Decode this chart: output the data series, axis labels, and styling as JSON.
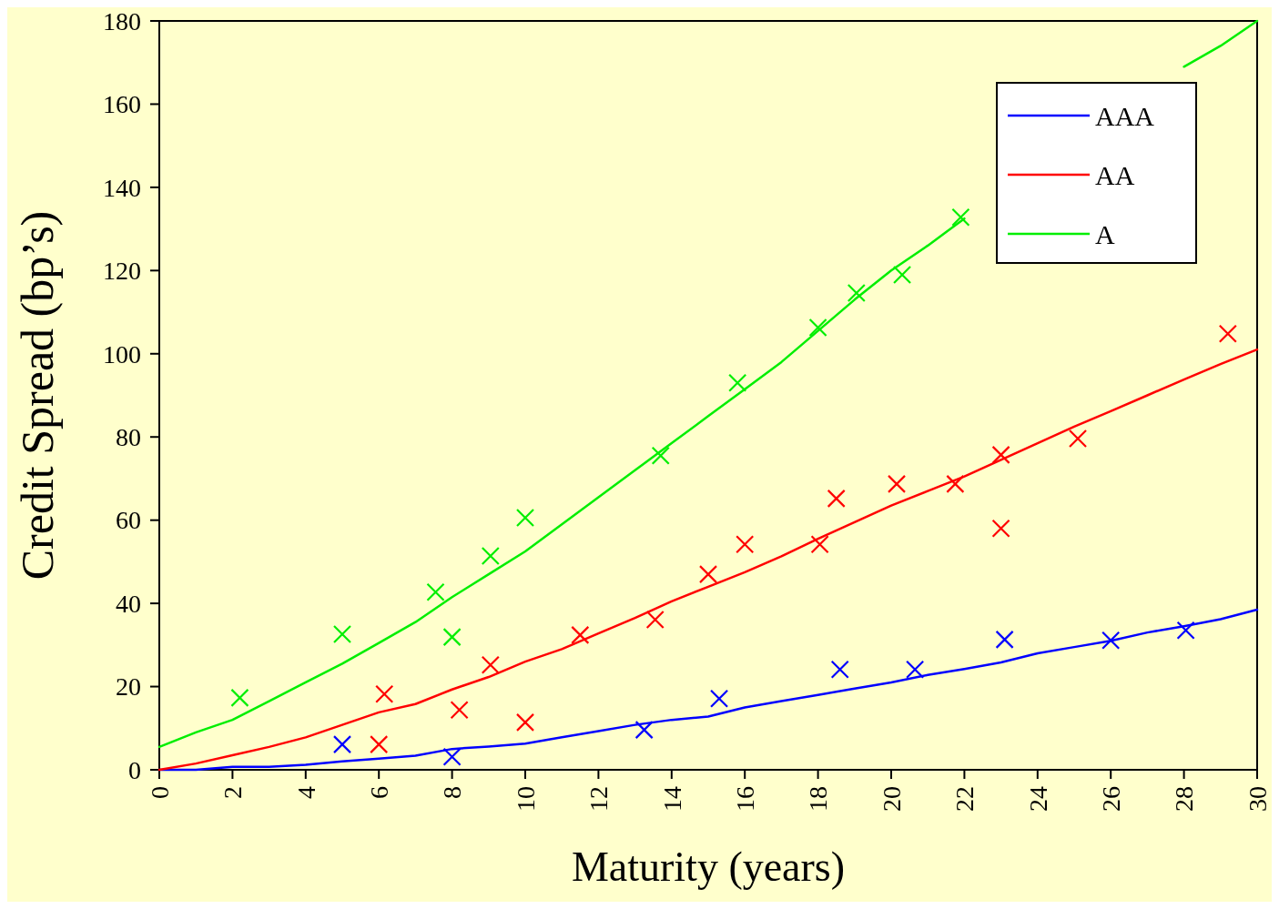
{
  "chart_data": {
    "type": "line",
    "xlabel": "Maturity (years)",
    "ylabel": "Credit Spread (bp’s)",
    "xlim": [
      0,
      30
    ],
    "xticks": [
      0,
      2,
      4,
      6,
      8,
      10,
      12,
      14,
      16,
      18,
      20,
      22,
      24,
      26,
      28,
      30
    ],
    "ylim": [
      0,
      180
    ],
    "yticks": [
      0,
      20,
      40,
      60,
      80,
      100,
      120,
      140,
      160,
      180
    ],
    "grid": false,
    "legend": "top right",
    "line_style": "solid",
    "series": [
      {
        "name": "AAA",
        "type": "line",
        "color": "#0000ff",
        "marker": "none",
        "x": [
          0,
          1,
          2,
          3,
          4,
          5,
          6,
          7,
          8,
          9,
          10,
          11,
          12,
          13,
          14,
          15,
          16,
          17,
          18,
          19,
          20,
          21,
          22,
          23,
          24,
          25,
          26,
          27,
          28,
          29,
          30
        ],
        "values": [
          0,
          0,
          0.7,
          0.7,
          1.2,
          2,
          2.7,
          3.4,
          5,
          5.6,
          6.3,
          7.8,
          9.3,
          10.8,
          12,
          12.8,
          15,
          16.5,
          18,
          19.5,
          21,
          22.8,
          24.2,
          25.8,
          28,
          29.5,
          31,
          33,
          34.5,
          36.2,
          38.5
        ]
      },
      {
        "name": "AA",
        "type": "line",
        "color": "#ff0000",
        "marker": "none",
        "x": [
          0,
          1,
          2,
          3,
          4,
          5,
          6,
          7,
          8,
          9,
          10,
          11,
          12,
          13,
          14,
          15,
          16,
          17,
          18,
          19,
          20,
          21,
          22,
          23,
          24,
          25,
          26,
          27,
          28,
          29,
          30
        ],
        "values": [
          0,
          1.5,
          3.5,
          5.5,
          7.8,
          10.8,
          13.8,
          15.8,
          19.3,
          22.3,
          26,
          29,
          32.8,
          36.5,
          40.5,
          44,
          47.5,
          51.3,
          55.5,
          59.5,
          63.5,
          67,
          70.5,
          74.5,
          78.5,
          82.5,
          86.2,
          90,
          93.8,
          97.5,
          101
        ]
      },
      {
        "name": "A",
        "type": "line",
        "color": "#00ee00",
        "marker": "none",
        "x": [
          0,
          1,
          2,
          3,
          4,
          5,
          6,
          7,
          8,
          9,
          10,
          11,
          12,
          13,
          14,
          15,
          16,
          17,
          18,
          19,
          20,
          21,
          22,
          23,
          24,
          25,
          26,
          27,
          28,
          29,
          30
        ],
        "values": [
          5.5,
          9,
          12,
          16.5,
          21,
          25.5,
          30.5,
          35.5,
          41.5,
          47,
          52.5,
          59,
          65.5,
          72,
          78.5,
          85,
          91.5,
          98,
          105.5,
          113,
          120,
          126,
          132.5,
          null,
          null,
          null,
          null,
          null,
          169,
          174,
          180
        ]
      },
      {
        "type": "scatter",
        "color": "#0000ff",
        "marker": "cross",
        "x": [
          5.0,
          8.0,
          13.25,
          15.3,
          18.6,
          20.65,
          23.1,
          26.0,
          28.05
        ],
        "values": [
          6.1,
          3.1,
          9.6,
          17.1,
          24.1,
          24.1,
          31.3,
          31.1,
          33.5
        ]
      },
      {
        "type": "scatter",
        "color": "#ff0000",
        "marker": "cross",
        "x": [
          6.15,
          6.0,
          8.2,
          9.05,
          10.0,
          11.5,
          13.55,
          15.0,
          16.0,
          18.05,
          18.5,
          20.15,
          21.75,
          23.0,
          23.0,
          25.1,
          29.2
        ],
        "values": [
          18.2,
          6.1,
          14.4,
          25.2,
          11.4,
          32.4,
          36.1,
          47,
          54.2,
          54.2,
          65.2,
          68.7,
          68.7,
          75.7,
          58,
          79.6,
          104.8
        ]
      },
      {
        "type": "scatter",
        "color": "#00ee00",
        "marker": "cross",
        "x": [
          2.2,
          5.0,
          7.55,
          8.0,
          9.05,
          10.0,
          13.7,
          15.8,
          18.0,
          19.05,
          20.3,
          21.9
        ],
        "values": [
          17.3,
          32.6,
          42.7,
          31.9,
          51.4,
          60.6,
          75.5,
          93,
          106.3,
          114.6,
          119,
          132.8
        ]
      }
    ]
  }
}
